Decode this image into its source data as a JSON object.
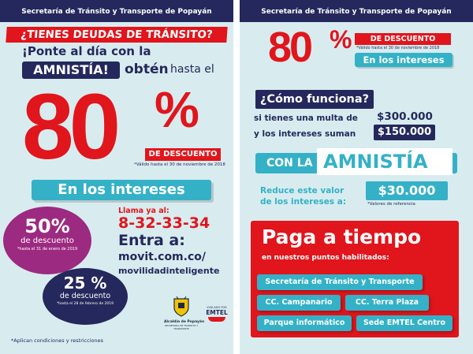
{
  "left": {
    "header": "Secretaría de Tránsito y Transporte de Popayán",
    "debt_question": "¿TIENES DEUDAS DE TRÁNSITO?",
    "line_ponte": "¡Ponte al día con la",
    "amnistia": "AMNISTÍA!",
    "obten": "obtén",
    "hasta_el": "hasta el",
    "big_number": "80",
    "big_percent": "%",
    "de_descuento": "DE DESCUENTO",
    "validity": "*Válido hasta el 30 de noviembre de 2018",
    "en_los_intereses": "En los intereses",
    "offers": [
      {
        "percent": "50%",
        "label": "de descuento",
        "date": "*hasta el 31 de enero de 2019",
        "color": "#9c2a80"
      },
      {
        "percent": "25 %",
        "label": "de descuento",
        "date": "*hasta el 28 de febrero de 2019",
        "color": "#25285c"
      }
    ],
    "call_label": "Llama ya al:",
    "phone": "8-32-33-34",
    "enter_label": "Entra a:",
    "url_line1": "movit.com.co/",
    "url_line2": "movilidadinteligente",
    "logo_popayan": "Alcaldía de Popayán",
    "logo_popayan_sub": "SECRETARÍA DE TRÁNSITO Y TRANSPORTE",
    "logo_emtel_top": "VIGILADO POR",
    "logo_emtel": "EMTEL",
    "footer": "*Aplican condiciones y restricciones",
    "colors": {
      "navy": "#25285c",
      "red": "#e1151c",
      "cyan": "#34b1c7",
      "bg": "#d8ecef"
    }
  },
  "right": {
    "header": "Secretaría de Tránsito y Transporte de Popayán",
    "big_number": "80",
    "big_percent": "%",
    "de_descuento": "DE DESCUENTO",
    "validity": "*Válido hasta el 30 de noviembre de 2018",
    "en_los_intereses": "En los intereses",
    "como_funciona": "¿Cómo funciona?",
    "multa_text": "si tienes una multa de",
    "multa_value": "$300.000",
    "intereses_text": "y los intereses suman",
    "intereses_value": "$150.000",
    "con_la": "CON LA",
    "amnistia": "AMNISTÍA",
    "reduce_line1": "Reduce este valor",
    "reduce_line2": "de los intereses a:",
    "reduced_value": "$30.000",
    "reduced_note": "*Valores de referencia",
    "paga": "Paga a tiempo",
    "puntos": "en nuestros puntos habilitados:",
    "points": [
      "Secretaría de Tránsito y Transporte",
      "CC. Campanario",
      "CC. Terra Plaza",
      "Parque informático",
      "Sede EMTEL Centro"
    ]
  }
}
